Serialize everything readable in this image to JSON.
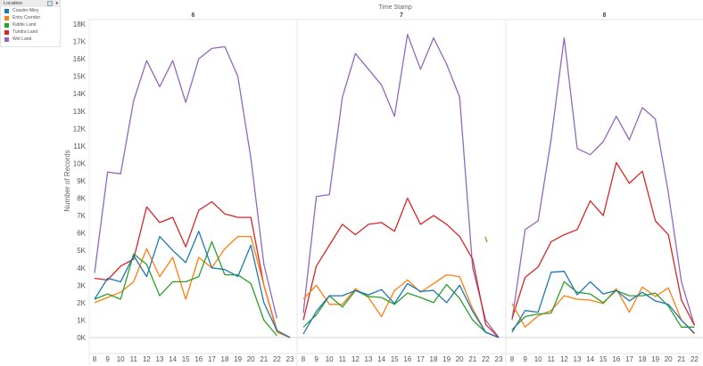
{
  "legend": {
    "title": "Location",
    "items": [
      {
        "label": "Coaster Alley",
        "color": "#1f77b4"
      },
      {
        "label": "Entry Corridor",
        "color": "#ff7f0e"
      },
      {
        "label": "Kiddie Land",
        "color": "#2ca02c"
      },
      {
        "label": "Tundra Land",
        "color": "#d62728"
      },
      {
        "label": "Wet Land",
        "color": "#9467bd"
      }
    ]
  },
  "chart_data": {
    "type": "line",
    "title": "Time Stamp",
    "ylabel": "Number of Records",
    "ylim": [
      0,
      18000
    ],
    "yticks": [
      "0K",
      "1K",
      "2K",
      "3K",
      "4K",
      "5K",
      "6K",
      "7K",
      "8K",
      "9K",
      "10K",
      "11K",
      "12K",
      "13K",
      "14K",
      "15K",
      "16K",
      "17K",
      "18K"
    ],
    "panels": [
      {
        "label": "6",
        "hours": [
          8,
          9,
          10,
          11,
          12,
          13,
          14,
          15,
          16,
          17,
          18,
          19,
          20,
          21,
          22,
          23
        ],
        "series": {
          "Coaster Alley": [
            2200,
            3400,
            3200,
            4700,
            3500,
            5800,
            5000,
            4300,
            6100,
            4000,
            3900,
            3500,
            5300,
            2000,
            400,
            0
          ],
          "Entry Corridor": [
            2000,
            2300,
            2600,
            3200,
            5100,
            3500,
            4600,
            2200,
            4600,
            4000,
            5100,
            5800,
            5800,
            3000,
            300,
            0
          ],
          "Kiddie Land": [
            2200,
            2500,
            2200,
            4800,
            4200,
            2400,
            3200,
            3200,
            3500,
            5500,
            3600,
            3600,
            3100,
            1000,
            100,
            null
          ],
          "Tundra Land": [
            3400,
            3300,
            4100,
            4500,
            7500,
            6600,
            6900,
            5200,
            7300,
            7800,
            7100,
            6900,
            6900,
            3000,
            400,
            0
          ],
          "Wet Land": [
            3700,
            9500,
            9400,
            13600,
            15900,
            14400,
            15900,
            13500,
            16000,
            16600,
            16700,
            15000,
            10300,
            4200,
            1100,
            null
          ]
        }
      },
      {
        "label": "7",
        "hours": [
          8,
          9,
          10,
          11,
          12,
          13,
          14,
          15,
          16,
          17,
          18,
          19,
          20,
          21,
          22,
          23
        ],
        "series": {
          "Coaster Alley": [
            200,
            1500,
            2400,
            2400,
            2700,
            2450,
            2750,
            1950,
            3100,
            2650,
            2700,
            2000,
            3000,
            1500,
            300,
            0
          ],
          "Entry Corridor": [
            2200,
            3000,
            1900,
            1900,
            2800,
            2300,
            1200,
            2700,
            3300,
            2600,
            3100,
            3600,
            3500,
            1650,
            300,
            0
          ],
          "Kiddie Land": [
            600,
            1300,
            2400,
            1750,
            2700,
            2350,
            2300,
            1900,
            2550,
            2300,
            2000,
            3050,
            2250,
            1000,
            300,
            0
          ],
          "Tundra Land": [
            1000,
            4100,
            5300,
            6500,
            5900,
            6500,
            6600,
            6100,
            8000,
            6500,
            7000,
            6500,
            5800,
            4500,
            750,
            0
          ],
          "Wet Land": [
            1400,
            8100,
            8200,
            13800,
            16300,
            15400,
            14500,
            12700,
            17400,
            15400,
            17200,
            15700,
            13800,
            4000,
            1000,
            0
          ]
        }
      },
      {
        "label": "8",
        "hours": [
          8,
          9,
          10,
          11,
          12,
          13,
          14,
          15,
          16,
          17,
          18,
          19,
          20,
          21,
          22
        ],
        "series": {
          "Coaster Alley": [
            300,
            1550,
            1450,
            3750,
            3800,
            2450,
            3200,
            2500,
            2700,
            2100,
            2600,
            2100,
            1900,
            1000,
            250
          ],
          "Entry Corridor": [
            1950,
            600,
            1250,
            1550,
            2400,
            2200,
            2150,
            1950,
            2800,
            1450,
            2900,
            2350,
            2850,
            1000,
            200
          ],
          "Kiddie Land": [
            450,
            1200,
            1350,
            1400,
            3200,
            2600,
            2500,
            2000,
            2700,
            2400,
            2400,
            2550,
            1800,
            600,
            600
          ],
          "Tundra Land": [
            1100,
            3450,
            4050,
            5500,
            5900,
            6200,
            7850,
            7000,
            10050,
            8850,
            9550,
            6700,
            5900,
            2150,
            700
          ],
          "Wet Land": [
            1000,
            6200,
            6700,
            11400,
            17200,
            10850,
            10500,
            11250,
            12700,
            11350,
            13200,
            12550,
            8300,
            3200,
            700
          ]
        }
      }
    ]
  }
}
